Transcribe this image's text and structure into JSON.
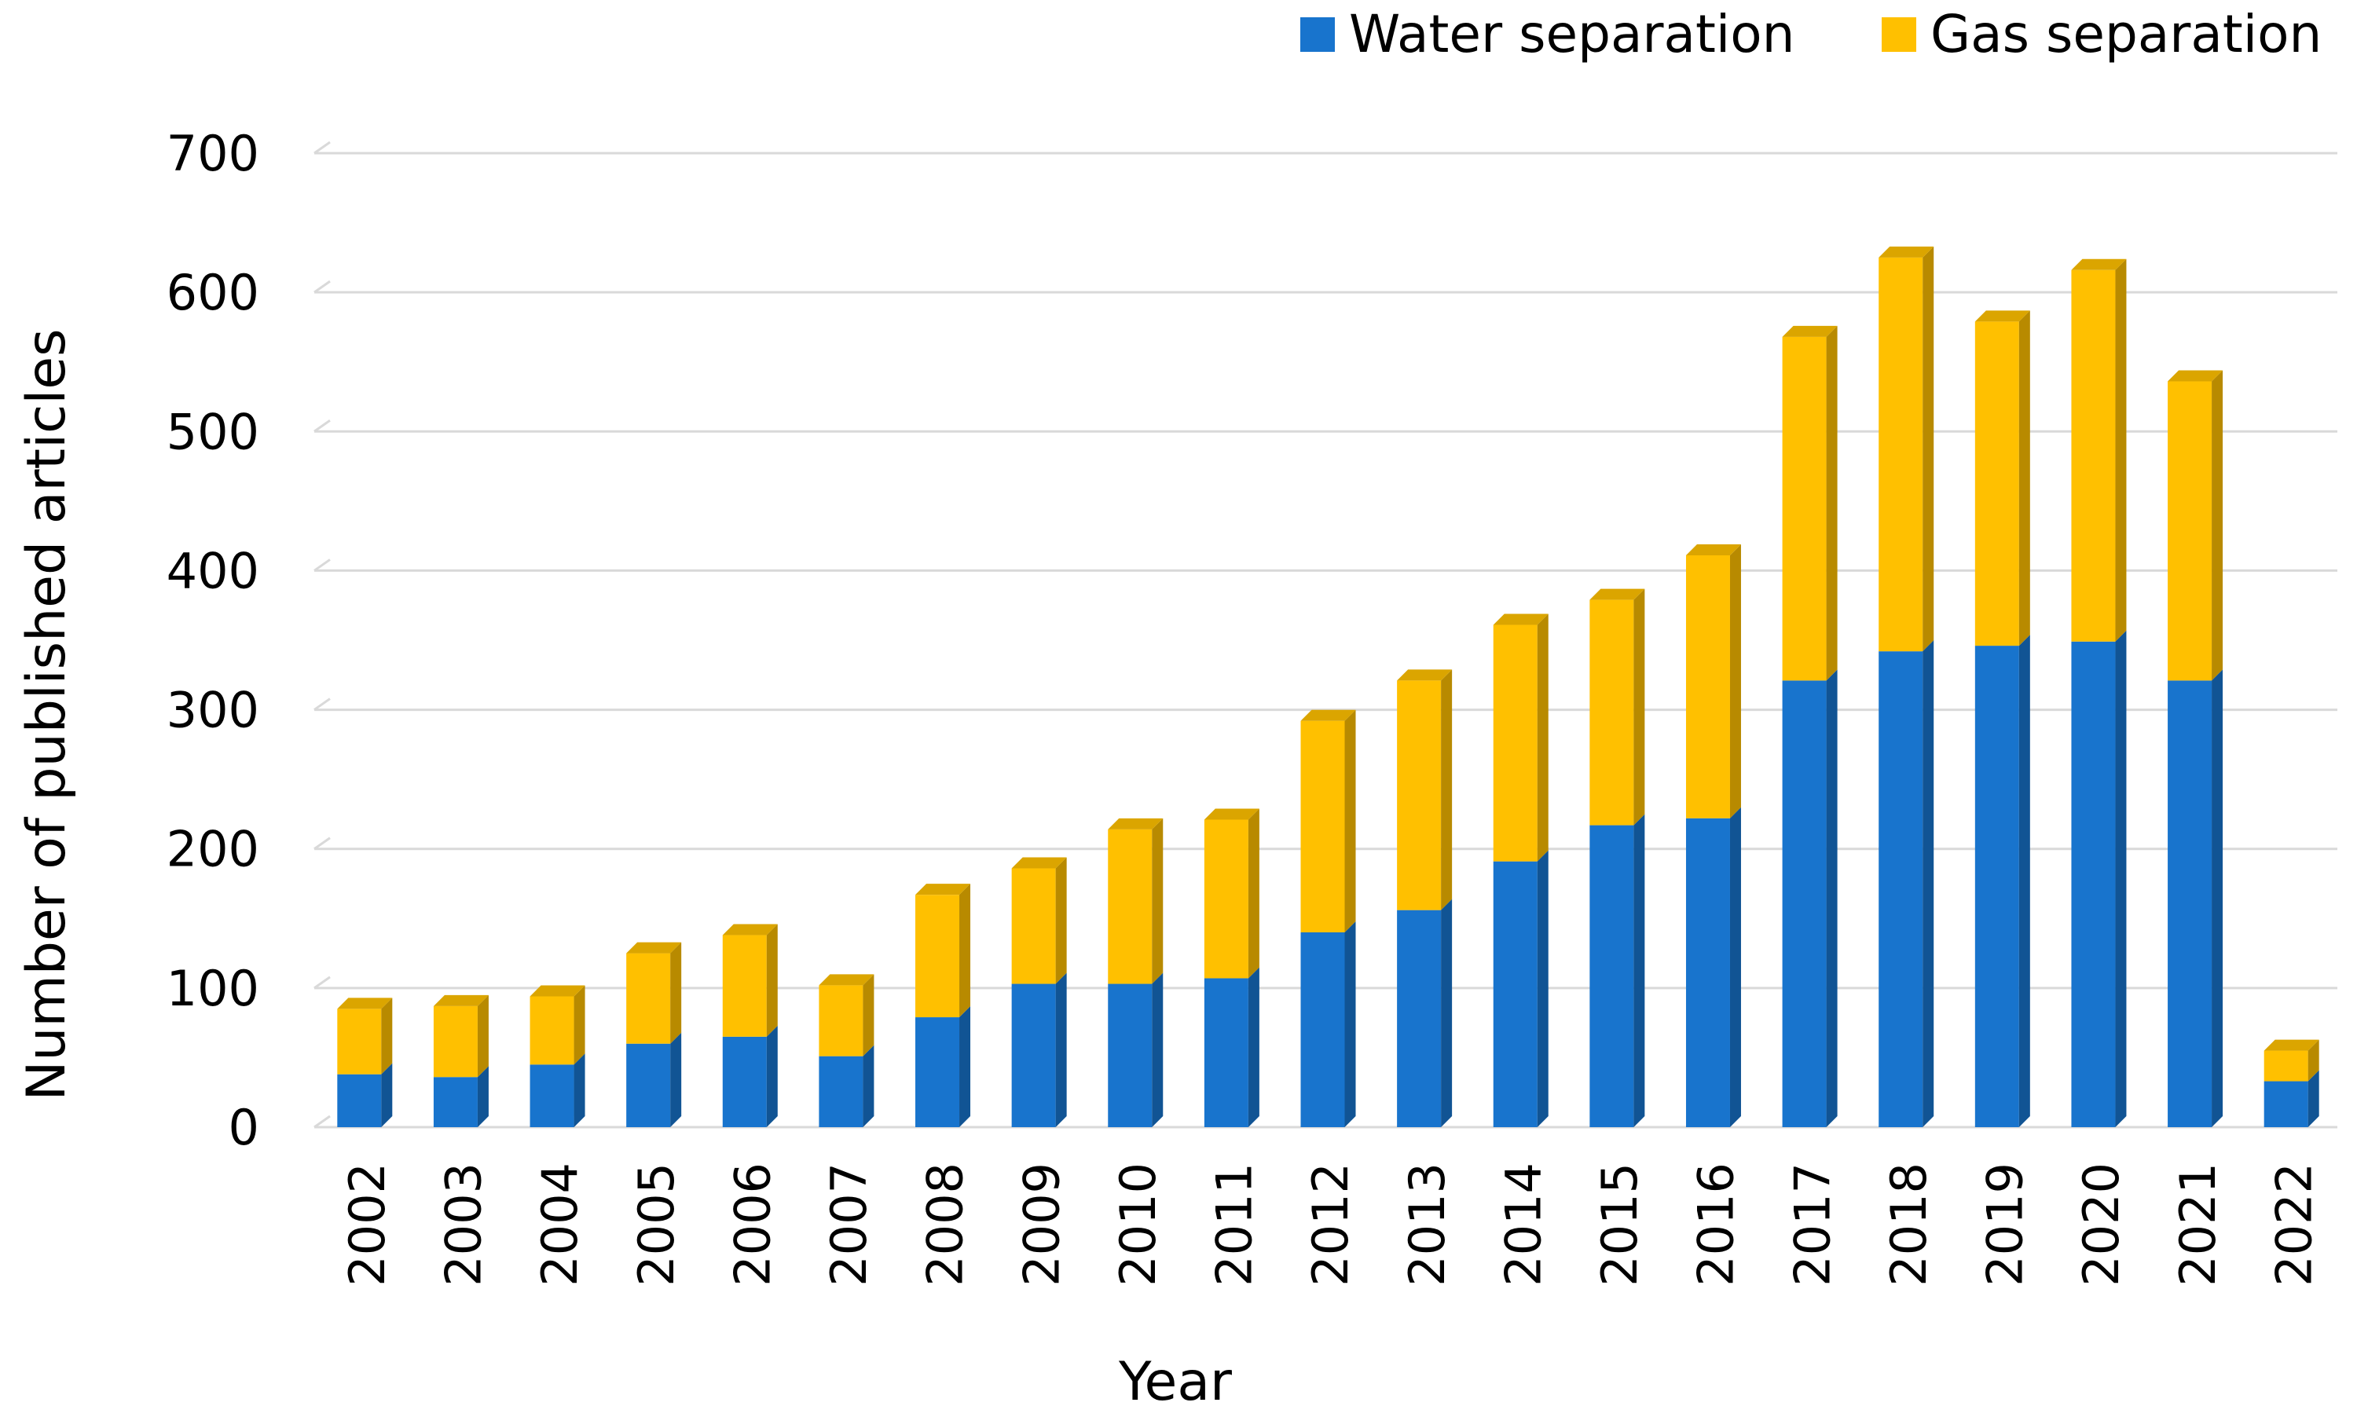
{
  "chart_data": {
    "type": "bar",
    "stacked": true,
    "title": "",
    "xlabel": "Year",
    "ylabel": "Number of published articles",
    "ylim": [
      0,
      700
    ],
    "yticks": [
      "0",
      "100",
      "200",
      "300",
      "400",
      "500",
      "600",
      "700"
    ],
    "grid": true,
    "legend_position": "top-right",
    "categories": [
      "2002",
      "2003",
      "2004",
      "2005",
      "2006",
      "2007",
      "2008",
      "2009",
      "2010",
      "2011",
      "2012",
      "2013",
      "2014",
      "2015",
      "2016",
      "2017",
      "2018",
      "2019",
      "2020",
      "2021",
      "2022"
    ],
    "series": [
      {
        "name": "Water separation",
        "color": "#1874CD",
        "values": [
          38,
          36,
          45,
          60,
          65,
          51,
          79,
          103,
          103,
          107,
          140,
          156,
          191,
          217,
          222,
          321,
          342,
          346,
          349,
          321,
          33
        ]
      },
      {
        "name": "Gas separation",
        "color": "#FFC000",
        "values": [
          47,
          51,
          49,
          65,
          73,
          51,
          88,
          83,
          111,
          114,
          152,
          165,
          170,
          162,
          189,
          247,
          283,
          233,
          267,
          215,
          22
        ]
      }
    ]
  }
}
